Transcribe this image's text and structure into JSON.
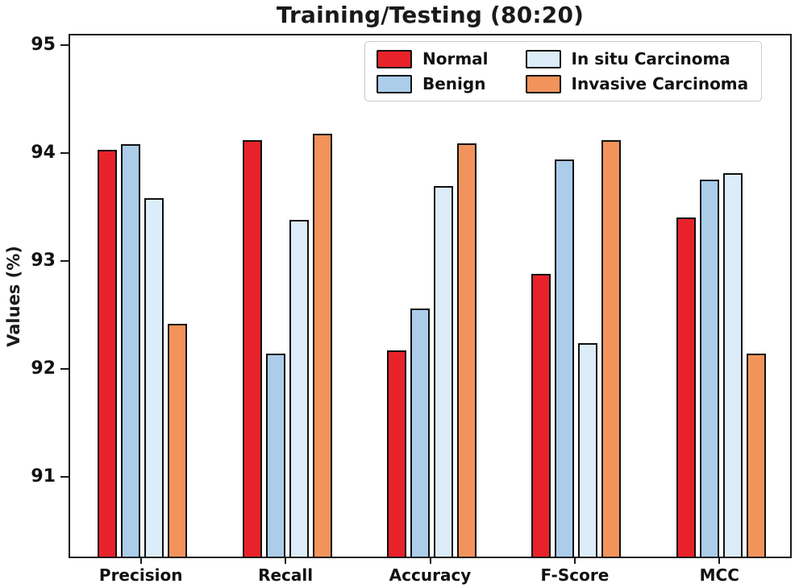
{
  "title": "Training/Testing (80:20)",
  "y_axis_label": "Values (%)",
  "colors": {
    "normal": "#e8222a",
    "benign": "#abcdea",
    "in_situ": "#dcecf8",
    "invasive": "#f2935c",
    "bar_edge": "#0f0f0f",
    "axis": "#1a1a1a"
  },
  "chart_data": {
    "type": "bar",
    "title": "Training/Testing (80:20)",
    "xlabel": "",
    "ylabel": "Values (%)",
    "categories": [
      "Precision",
      "Recall",
      "Accuracy",
      "F-Score",
      "MCC"
    ],
    "series": [
      {
        "name": "Normal",
        "color": "#e8222a",
        "values": [
          94.02,
          94.11,
          92.16,
          92.87,
          93.39
        ]
      },
      {
        "name": "Benign",
        "color": "#abcdea",
        "values": [
          94.07,
          92.13,
          92.55,
          93.93,
          93.74
        ]
      },
      {
        "name": "In situ Carcinoma",
        "color": "#dcecf8",
        "values": [
          93.57,
          93.37,
          93.68,
          92.23,
          93.8
        ]
      },
      {
        "name": "Invasive Carcinoma",
        "color": "#f2935c",
        "values": [
          92.41,
          94.17,
          94.08,
          94.11,
          92.13
        ]
      }
    ],
    "yticks": [
      91,
      92,
      93,
      94,
      95
    ],
    "ylim": [
      90.25,
      95.108
    ],
    "grid": false,
    "legend_position": "upper center inside, two columns"
  }
}
